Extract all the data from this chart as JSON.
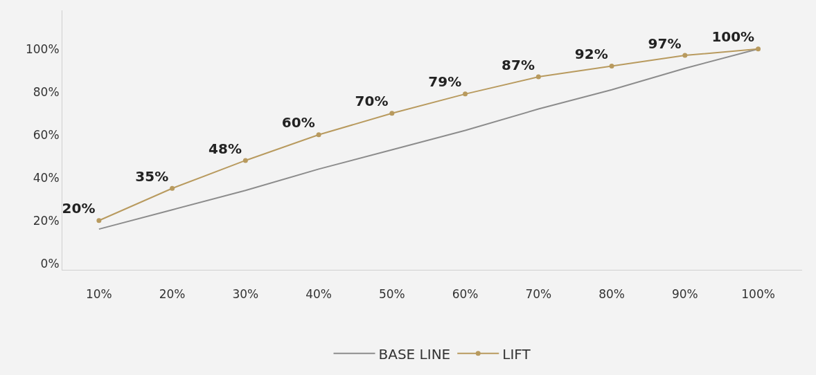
{
  "chart_data": {
    "type": "line",
    "categories": [
      "10%",
      "20%",
      "30%",
      "40%",
      "50%",
      "60%",
      "70%",
      "80%",
      "90%",
      "100%"
    ],
    "series": [
      {
        "name": "BASE LINE",
        "color": "#8c8c8c",
        "values": [
          16,
          25,
          34,
          44,
          53,
          62,
          72,
          81,
          91,
          100
        ]
      },
      {
        "name": "LIFT",
        "color": "#b89a5e",
        "values": [
          20,
          35,
          48,
          60,
          70,
          79,
          87,
          92,
          97,
          100
        ],
        "marker": "circle",
        "value_labels": [
          "20%",
          "35%",
          "48%",
          "60%",
          "70%",
          "79%",
          "87%",
          "92%",
          "97%",
          "100%"
        ]
      }
    ],
    "ylim": [
      -3,
      118
    ],
    "yticks": [
      {
        "value": 0,
        "label": "0%"
      },
      {
        "value": 20,
        "label": "20%"
      },
      {
        "value": 40,
        "label": "40%"
      },
      {
        "value": 60,
        "label": "60%"
      },
      {
        "value": 80,
        "label": "80%"
      },
      {
        "value": 100,
        "label": "100%"
      }
    ],
    "grid": false,
    "legend": "bottom"
  }
}
